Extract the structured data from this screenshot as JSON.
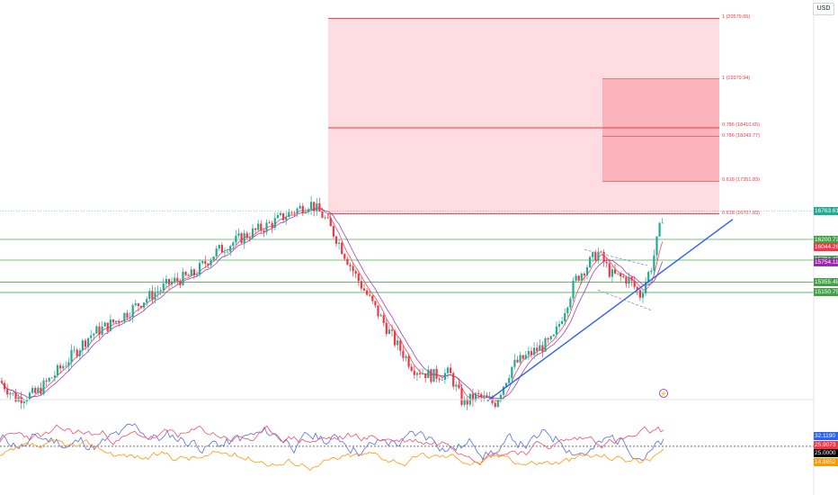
{
  "header": {
    "currency": "USD"
  },
  "colors": {
    "up": "#22ab94",
    "down": "#f23645",
    "ma_fast": "#f23645",
    "ma_slow": "#9c27b0",
    "trendline": "#2962ff",
    "fib_line": "#f23645",
    "fib_fill": "#ffcdd2",
    "support": "#4caf50",
    "ind_blue": "#5b6ee1",
    "ind_red": "#f0506e",
    "ind_orange": "#ff9800"
  },
  "chart_data": {
    "type": "candlestick",
    "y_range": [
      13100,
      20800
    ],
    "fib_levels": [
      {
        "ratio": "1",
        "price": 20579.65,
        "label": "1 (20579.65)"
      },
      {
        "ratio": "1",
        "price": 19379.94,
        "label": "1 (19379.94)"
      },
      {
        "ratio": "0.786",
        "price": 18410.65,
        "label": "0.786 (18410.65)"
      },
      {
        "ratio": "0.786",
        "price": 18243.77,
        "label": "0.786 (18243.77)"
      },
      {
        "ratio": "0.618",
        "price": 17351.83,
        "label": "0.618 (17351.83)"
      },
      {
        "ratio": "0.618",
        "price": 16707.83,
        "label": "0.618 (16707.83)"
      }
    ],
    "price_labels": [
      {
        "value": "16763.61",
        "price": 16763.61,
        "color": "#22ab94"
      },
      {
        "value": "16200.73",
        "price": 16200.73,
        "color": "#43a047"
      },
      {
        "value": "16044.26",
        "price": 16044.26,
        "color": "#f23645"
      },
      {
        "value": "15791.45",
        "price": 15791.45,
        "color": "#43a047"
      },
      {
        "value": "15754.11",
        "price": 15754.11,
        "color": "#9c27b0"
      },
      {
        "value": "15355.48",
        "price": 15355.48,
        "color": "#43a047"
      },
      {
        "value": "15150.75",
        "price": 15150.75,
        "color": "#43a047"
      }
    ],
    "support_lines": [
      16200.73,
      15791.45,
      15355.48,
      15150.75
    ],
    "path": [
      [
        0,
        13400
      ],
      [
        18,
        13050
      ],
      [
        40,
        13150
      ],
      [
        70,
        13700
      ],
      [
        100,
        14300
      ],
      [
        130,
        14600
      ],
      [
        160,
        15000
      ],
      [
        190,
        15350
      ],
      [
        215,
        15500
      ],
      [
        240,
        15950
      ],
      [
        270,
        16250
      ],
      [
        300,
        16500
      ],
      [
        320,
        16700
      ],
      [
        345,
        16920
      ],
      [
        360,
        16650
      ],
      [
        375,
        16200
      ],
      [
        395,
        15500
      ],
      [
        415,
        14900
      ],
      [
        440,
        14150
      ],
      [
        460,
        13650
      ],
      [
        480,
        13500
      ],
      [
        500,
        13550
      ],
      [
        515,
        12950
      ],
      [
        530,
        13100
      ],
      [
        550,
        12950
      ],
      [
        570,
        13700
      ],
      [
        595,
        14000
      ],
      [
        615,
        14200
      ],
      [
        640,
        15400
      ],
      [
        665,
        15950
      ],
      [
        680,
        15500
      ],
      [
        700,
        15400
      ],
      [
        712,
        15100
      ],
      [
        725,
        15700
      ],
      [
        738,
        16763
      ]
    ],
    "trendline": [
      [
        542,
        13000
      ],
      [
        815,
        16600
      ]
    ],
    "channel": [
      [
        650,
        16000
      ],
      [
        720,
        15150
      ]
    ],
    "indicator": {
      "labels": [
        {
          "value": "32.1190",
          "level": 32.119,
          "color": "#2962ff"
        },
        {
          "value": "25.9073",
          "level": 25.9073,
          "color": "#f23645"
        },
        {
          "value": "25.0000",
          "level": 25.0,
          "color": "#000000"
        },
        {
          "value": "14.9652",
          "level": 14.9652,
          "color": "#ff9800"
        }
      ],
      "range": [
        5,
        52
      ]
    }
  }
}
